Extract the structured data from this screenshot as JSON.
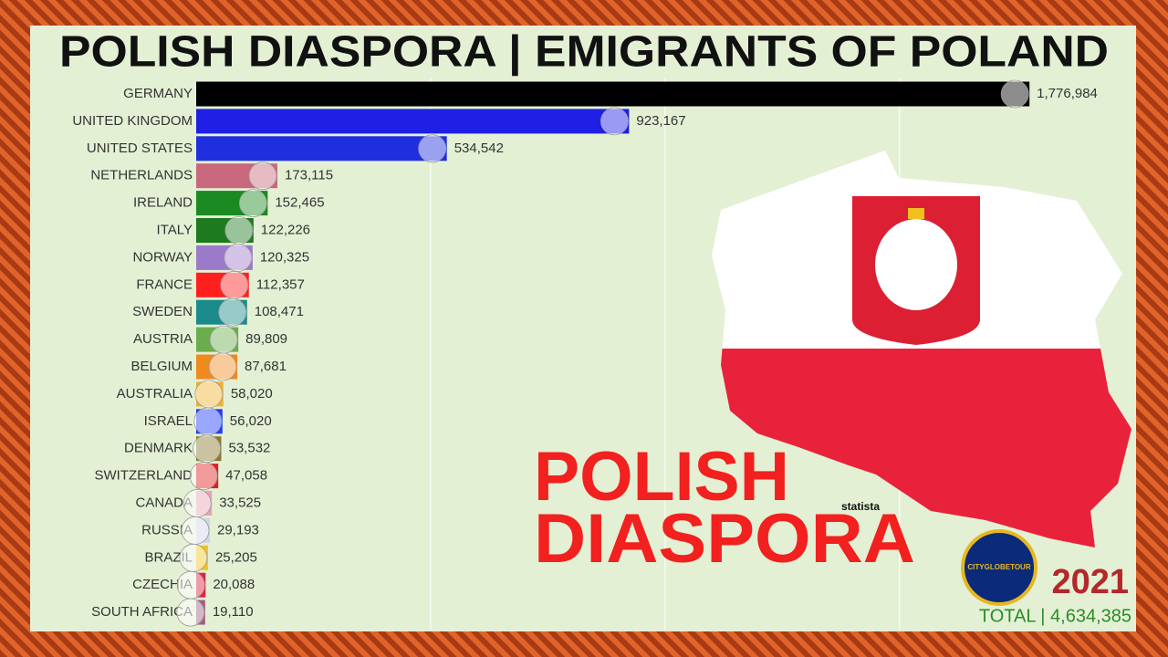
{
  "chart_data": {
    "type": "bar",
    "orientation": "horizontal",
    "title": "POLISH DIASPORA | EMIGRANTS OF POLAND",
    "categories": [
      "GERMANY",
      "UNITED KINGDOM",
      "UNITED STATES",
      "NETHERLANDS",
      "IRELAND",
      "ITALY",
      "NORWAY",
      "FRANCE",
      "SWEDEN",
      "AUSTRIA",
      "BELGIUM",
      "AUSTRALIA",
      "ISRAEL",
      "DENMARK",
      "SWITZERLAND",
      "CANADA",
      "RUSSIA",
      "BRAZIL",
      "CZECHIA",
      "SOUTH AFRICA"
    ],
    "values": [
      1776984,
      923167,
      534542,
      173115,
      152465,
      122226,
      120325,
      112357,
      108471,
      89809,
      87681,
      58020,
      56020,
      53532,
      47058,
      33525,
      29193,
      25205,
      20088,
      19110
    ],
    "value_labels": [
      "1,776,984",
      "923,167",
      "534,542",
      "173,115",
      "152,465",
      "122,226",
      "120,325",
      "112,357",
      "108,471",
      "89,809",
      "87,681",
      "58,020",
      "56,020",
      "53,532",
      "47,058",
      "33,525",
      "29,193",
      "25,205",
      "20,088",
      "19,110"
    ],
    "colors": [
      "#000000",
      "#1f1fe6",
      "#1f2fe0",
      "#c9687c",
      "#1b8a22",
      "#1d7a1f",
      "#9b7bc9",
      "#ff1f1f",
      "#1b8a8a",
      "#6aad4c",
      "#ef8a1f",
      "#f0b22e",
      "#1f3cff",
      "#8b7a2f",
      "#e01f1f",
      "#e9a3b3",
      "#d3d3e8",
      "#f0c51f",
      "#e0223f",
      "#9f5f80"
    ],
    "xlim": [
      0,
      1800000
    ],
    "xticks": [
      500000,
      1000000,
      1500000
    ],
    "grid": true,
    "year": "2021",
    "total_label": "TOTAL | 4,634,385",
    "overlay_text": [
      "POLISH",
      "DIASPORA"
    ],
    "source": "statista",
    "logo_text": "CITYGLOBETOUR"
  }
}
